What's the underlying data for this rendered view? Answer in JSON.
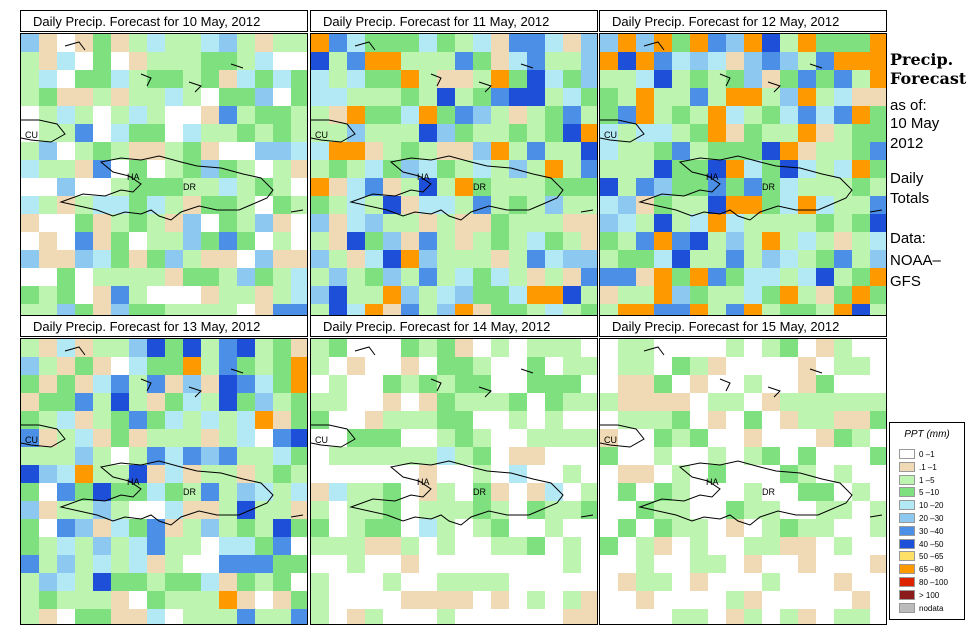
{
  "panels": [
    {
      "title": "Daily Precip. Forecast for  10 May, 2012",
      "seed": 11,
      "bias": 0.0
    },
    {
      "title": "Daily Precip. Forecast for  11 May, 2012",
      "seed": 23,
      "bias": 0.4
    },
    {
      "title": "Daily Precip. Forecast for  12 May, 2012",
      "seed": 37,
      "bias": 0.55
    },
    {
      "title": "Daily Precip. Forecast for  13 May, 2012",
      "seed": 51,
      "bias": 0.25
    },
    {
      "title": "Daily Precip. Forecast for  14 May, 2012",
      "seed": 67,
      "bias": -0.3
    },
    {
      "title": "Daily Precip. Forecast for  15 May, 2012",
      "seed": 83,
      "bias": -0.45
    }
  ],
  "countries": {
    "cu": "CU",
    "ha": "HA",
    "dr": "DR"
  },
  "sidebar": {
    "line1": "Precip.",
    "line2": "Forecast",
    "asof": "as of:",
    "date1": "10 May",
    "date2": "2012",
    "daily1": "Daily",
    "daily2": "Totals",
    "data1": "Data:",
    "data2": "NOAA–",
    "data3": "GFS"
  },
  "legend": {
    "title": "PPT (mm)",
    "items": [
      {
        "label": "0 –1",
        "color": "#ffffff"
      },
      {
        "label": ".1 –1",
        "color": "#f0d9b5"
      },
      {
        "label": "1 –5",
        "color": "#bdf5b0"
      },
      {
        "label": "5 –10",
        "color": "#7ee07e"
      },
      {
        "label": "10 –20",
        "color": "#b3e8f5"
      },
      {
        "label": "20 –30",
        "color": "#8cc8f0"
      },
      {
        "label": "30 –40",
        "color": "#4c8fe6"
      },
      {
        "label": "40 –50",
        "color": "#1e4fd8"
      },
      {
        "label": "50 –65",
        "color": "#ffe066"
      },
      {
        "label": "65 –80",
        "color": "#ff9900"
      },
      {
        "label": "80 –100",
        "color": "#dd2200"
      },
      {
        "label": "> 100",
        "color": "#8b1a1a"
      },
      {
        "label": "nodata",
        "color": "#bbbbbb"
      }
    ]
  }
}
